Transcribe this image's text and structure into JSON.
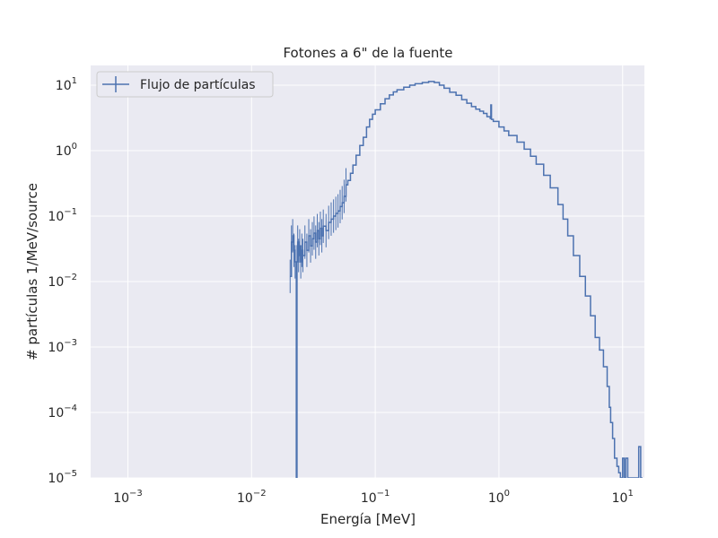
{
  "chart_data": {
    "type": "line",
    "title": "Fotones a 6\" de la fuente",
    "xlabel": "Energía [MeV]",
    "ylabel": "# partículas 1/MeV/source",
    "xscale": "log",
    "yscale": "log",
    "xlim": [
      0.0005,
      15
    ],
    "ylim": [
      1e-05,
      20
    ],
    "x_ticks": [
      {
        "value": 0.001,
        "base": "10",
        "exp": "−3"
      },
      {
        "value": 0.01,
        "base": "10",
        "exp": "−2"
      },
      {
        "value": 0.1,
        "base": "10",
        "exp": "−1"
      },
      {
        "value": 1,
        "base": "10",
        "exp": "0"
      },
      {
        "value": 10,
        "base": "10",
        "exp": "1"
      }
    ],
    "y_ticks": [
      {
        "value": 1e-05,
        "base": "10",
        "exp": "−5"
      },
      {
        "value": 0.0001,
        "base": "10",
        "exp": "−4"
      },
      {
        "value": 0.001,
        "base": "10",
        "exp": "−3"
      },
      {
        "value": 0.01,
        "base": "10",
        "exp": "−2"
      },
      {
        "value": 0.1,
        "base": "10",
        "exp": "−1"
      },
      {
        "value": 1,
        "base": "10",
        "exp": "0"
      },
      {
        "value": 10,
        "base": "10",
        "exp": "1"
      }
    ],
    "grid": true,
    "legend_position": "top-left",
    "colors": {
      "series": "#4c72b0",
      "background": "#eaeaf2",
      "grid": "#ffffff"
    },
    "series": [
      {
        "name": "Flujo de partículas",
        "style": "step",
        "x": [
          0.0205,
          0.021,
          0.0215,
          0.022,
          0.0225,
          0.023,
          0.0233,
          0.0236,
          0.024,
          0.0245,
          0.025,
          0.0255,
          0.026,
          0.027,
          0.028,
          0.029,
          0.03,
          0.031,
          0.032,
          0.033,
          0.034,
          0.035,
          0.036,
          0.037,
          0.038,
          0.04,
          0.042,
          0.044,
          0.046,
          0.048,
          0.05,
          0.052,
          0.054,
          0.056,
          0.058,
          0.06,
          0.063,
          0.066,
          0.07,
          0.075,
          0.08,
          0.085,
          0.09,
          0.095,
          0.1,
          0.11,
          0.12,
          0.13,
          0.14,
          0.15,
          0.17,
          0.19,
          0.21,
          0.24,
          0.27,
          0.3,
          0.33,
          0.36,
          0.4,
          0.45,
          0.5,
          0.55,
          0.6,
          0.65,
          0.7,
          0.75,
          0.8,
          0.85,
          0.86,
          0.87,
          0.9,
          1.0,
          1.1,
          1.2,
          1.4,
          1.6,
          1.8,
          2.0,
          2.3,
          2.6,
          3.0,
          3.3,
          3.6,
          4.0,
          4.5,
          5.0,
          5.5,
          6.0,
          6.5,
          7.0,
          7.5,
          7.8,
          8.0,
          8.3,
          8.6,
          9.0,
          9.3,
          9.6,
          10.0,
          10.3,
          10.6,
          11.0,
          13.5,
          14.0
        ],
        "y": [
          0.012,
          0.04,
          0.05,
          0.03,
          0.02,
          1e-05,
          0.02,
          0.04,
          0.025,
          0.035,
          0.02,
          0.03,
          0.025,
          0.04,
          0.03,
          0.05,
          0.035,
          0.045,
          0.055,
          0.04,
          0.06,
          0.045,
          0.065,
          0.05,
          0.07,
          0.06,
          0.08,
          0.09,
          0.1,
          0.11,
          0.12,
          0.14,
          0.16,
          0.2,
          0.3,
          0.35,
          0.45,
          0.6,
          0.85,
          1.2,
          1.6,
          2.3,
          3.0,
          3.6,
          4.2,
          5.2,
          6.2,
          7.1,
          7.9,
          8.5,
          9.3,
          10.0,
          10.5,
          11.0,
          11.4,
          11.0,
          10.0,
          9.0,
          7.8,
          7.0,
          6.0,
          5.3,
          4.7,
          4.3,
          4.0,
          3.7,
          3.3,
          3.1,
          5.0,
          3.0,
          2.8,
          2.3,
          2.0,
          1.7,
          1.35,
          1.05,
          0.82,
          0.62,
          0.42,
          0.27,
          0.15,
          0.09,
          0.05,
          0.025,
          0.012,
          0.006,
          0.003,
          0.0014,
          0.0009,
          0.0005,
          0.00025,
          0.00012,
          7e-05,
          4e-05,
          2e-05,
          1.5e-05,
          1.2e-05,
          1e-05,
          2e-05,
          1e-05,
          2e-05,
          1e-05,
          3e-05,
          1e-05
        ]
      }
    ]
  }
}
